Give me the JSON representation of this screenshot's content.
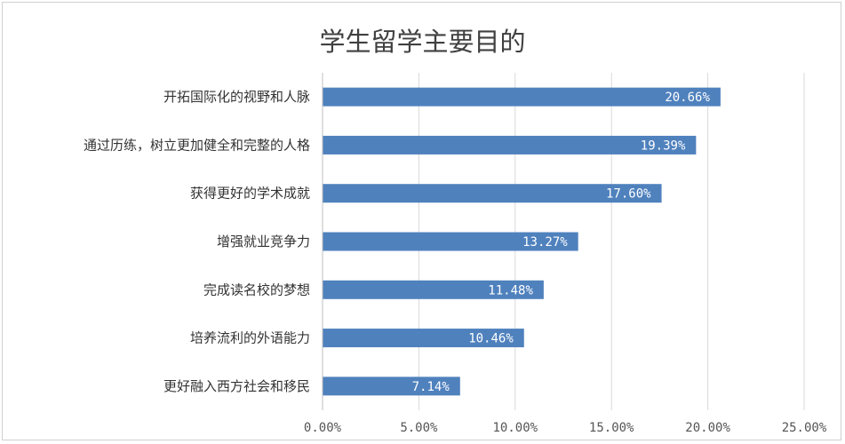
{
  "chart_data": {
    "type": "bar",
    "orientation": "horizontal",
    "title": "学生留学主要目的",
    "categories": [
      "开拓国际化的视野和人脉",
      "通过历练，树立更加健全和完整的人格",
      "获得更好的学术成就",
      "增强就业竞争力",
      "完成读名校的梦想",
      "培养流利的外语能力",
      "更好融入西方社会和移民"
    ],
    "values": [
      20.66,
      19.39,
      17.6,
      13.27,
      11.48,
      10.46,
      7.14
    ],
    "data_labels": [
      "20.66%",
      "19.39%",
      "17.60%",
      "13.27%",
      "11.48%",
      "10.46%",
      "7.14%"
    ],
    "xlim": [
      0,
      25
    ],
    "x_ticks": [
      "0.00%",
      "5.00%",
      "10.00%",
      "15.00%",
      "20.00%",
      "25.00%"
    ],
    "xlabel": "",
    "ylabel": "",
    "grid": true,
    "legend": "none",
    "bar_color": "#4f81bd",
    "grid_color": "#d9d9d9"
  }
}
